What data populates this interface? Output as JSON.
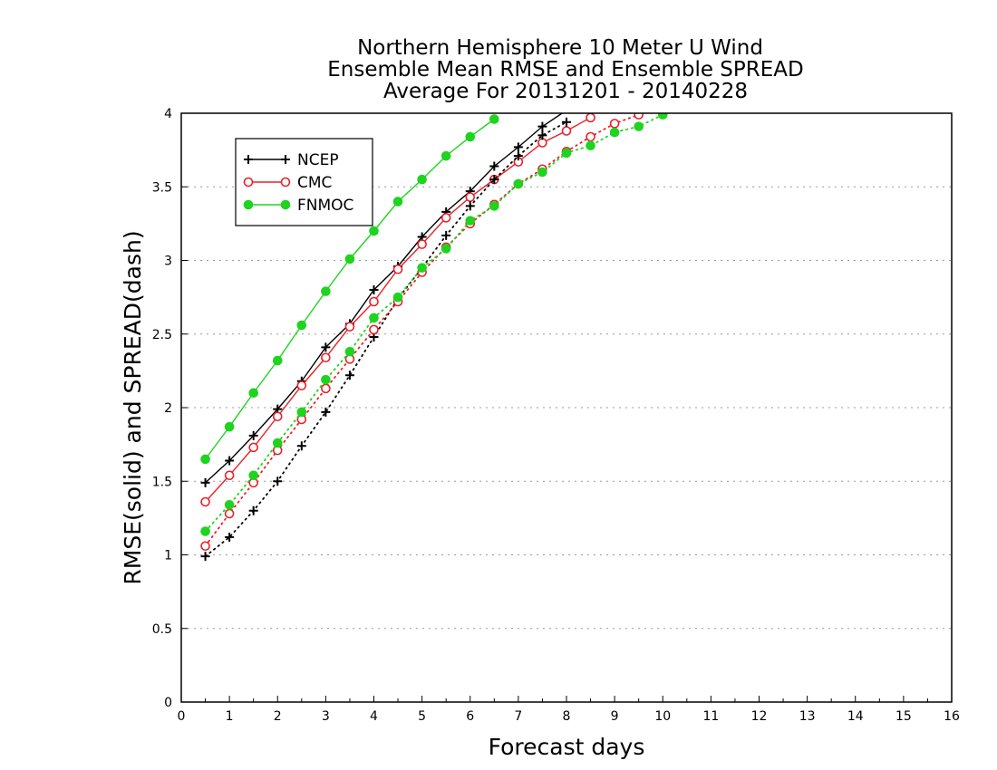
{
  "chart_data": {
    "type": "line",
    "title": [
      "Northern Hemisphere 10 Meter U Wind",
      "Ensemble Mean RMSE and Ensemble SPREAD",
      "Average For 20131201 - 20140228"
    ],
    "xlabel": "Forecast days",
    "ylabel": "RMSE(solid) and SPREAD(dash)",
    "xlim": [
      0,
      16
    ],
    "ylim": [
      0,
      4
    ],
    "xticks": [
      "0",
      "1",
      "2",
      "3",
      "4",
      "5",
      "6",
      "7",
      "8",
      "9",
      "10",
      "11",
      "12",
      "13",
      "14",
      "15",
      "16"
    ],
    "yticks": [
      "0",
      "0.5",
      "1",
      "1.5",
      "2",
      "2.5",
      "3",
      "3.5",
      "4"
    ],
    "grid": true,
    "legend_position": "top-left",
    "series": [
      {
        "name": "NCEP",
        "kind": "rmse",
        "style": "solid",
        "marker": "plus",
        "color": "#000000",
        "x": [
          0.5,
          1,
          1.5,
          2,
          2.5,
          3,
          3.5,
          4,
          4.5,
          5,
          5.5,
          6,
          6.5,
          7,
          7.5,
          8,
          8.5
        ],
        "y": [
          1.49,
          1.64,
          1.81,
          1.99,
          2.18,
          2.41,
          2.57,
          2.8,
          2.96,
          3.16,
          3.33,
          3.47,
          3.64,
          3.77,
          3.91,
          4.02,
          4.1
        ]
      },
      {
        "name": "CMC",
        "kind": "rmse",
        "style": "solid",
        "marker": "circle",
        "color": "#e8202a",
        "x": [
          0.5,
          1,
          1.5,
          2,
          2.5,
          3,
          3.5,
          4,
          4.5,
          5,
          5.5,
          6,
          6.5,
          7,
          7.5,
          8,
          8.5
        ],
        "y": [
          1.36,
          1.54,
          1.73,
          1.94,
          2.15,
          2.34,
          2.55,
          2.72,
          2.94,
          3.11,
          3.29,
          3.43,
          3.55,
          3.67,
          3.8,
          3.88,
          3.97
        ]
      },
      {
        "name": "FNMOC",
        "kind": "rmse",
        "style": "solid",
        "marker": "dot",
        "color": "#1ed41e",
        "x": [
          0.5,
          1,
          1.5,
          2,
          2.5,
          3,
          3.5,
          4,
          4.5,
          5,
          5.5,
          6,
          6.5
        ],
        "y": [
          1.65,
          1.87,
          2.1,
          2.32,
          2.56,
          2.79,
          3.01,
          3.2,
          3.4,
          3.55,
          3.71,
          3.84,
          3.96
        ]
      },
      {
        "name": "NCEP",
        "kind": "spread",
        "style": "dotted",
        "marker": "plus",
        "color": "#000000",
        "x": [
          0.5,
          1,
          1.5,
          2,
          2.5,
          3,
          3.5,
          4,
          4.5,
          5,
          5.5,
          6,
          6.5,
          7,
          7.5,
          8
        ],
        "y": [
          0.99,
          1.12,
          1.3,
          1.5,
          1.74,
          1.97,
          2.22,
          2.48,
          2.74,
          2.95,
          3.17,
          3.37,
          3.55,
          3.71,
          3.85,
          3.94
        ]
      },
      {
        "name": "CMC",
        "kind": "spread",
        "style": "dotted",
        "marker": "circle",
        "color": "#e8202a",
        "x": [
          0.5,
          1,
          1.5,
          2,
          2.5,
          3,
          3.5,
          4,
          4.5,
          5,
          5.5,
          6,
          6.5,
          7,
          7.5,
          8,
          8.5,
          9,
          9.5
        ],
        "y": [
          1.06,
          1.28,
          1.49,
          1.71,
          1.92,
          2.13,
          2.33,
          2.53,
          2.72,
          2.92,
          3.09,
          3.25,
          3.38,
          3.52,
          3.62,
          3.74,
          3.84,
          3.93,
          3.99
        ]
      },
      {
        "name": "FNMOC",
        "kind": "spread",
        "style": "dotted",
        "marker": "dot",
        "color": "#1ed41e",
        "x": [
          0.5,
          1,
          1.5,
          2,
          2.5,
          3,
          3.5,
          4,
          4.5,
          5,
          5.5,
          6,
          6.5,
          7,
          7.5,
          8,
          8.5,
          9,
          9.5,
          10
        ],
        "y": [
          1.16,
          1.34,
          1.54,
          1.76,
          1.97,
          2.19,
          2.38,
          2.61,
          2.75,
          2.95,
          3.08,
          3.27,
          3.37,
          3.52,
          3.6,
          3.73,
          3.78,
          3.87,
          3.91,
          3.99
        ]
      }
    ],
    "legend": [
      {
        "name": "NCEP",
        "marker": "plus",
        "color": "#000000"
      },
      {
        "name": "CMC",
        "marker": "circle",
        "color": "#e8202a"
      },
      {
        "name": "FNMOC",
        "marker": "dot",
        "color": "#1ed41e"
      }
    ]
  }
}
